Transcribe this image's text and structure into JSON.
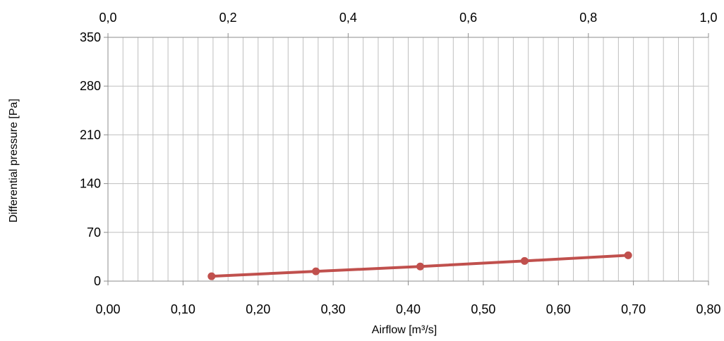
{
  "chart_data": {
    "type": "line",
    "title": "",
    "xlabel": "Airflow  [m³/s]",
    "ylabel": "Differential pressure [Pa]",
    "xlim": [
      0,
      0.8
    ],
    "ylim": [
      0,
      350
    ],
    "x_ticks": [
      "0,00",
      "0,10",
      "0,20",
      "0,30",
      "0,40",
      "0,50",
      "0,60",
      "0,70",
      "0,80"
    ],
    "y_ticks": [
      "0",
      "70",
      "140",
      "210",
      "280",
      "350"
    ],
    "secondary_xlim": [
      0,
      1.0
    ],
    "secondary_x_ticks": [
      "0,0",
      "0,2",
      "0,4",
      "0,6",
      "0,8",
      "1,0"
    ],
    "grid": true,
    "series": [
      {
        "color": "#c0504d",
        "x": [
          0.138,
          0.277,
          0.416,
          0.555,
          0.693
        ],
        "y": [
          7,
          14,
          21,
          29,
          37
        ]
      }
    ]
  }
}
